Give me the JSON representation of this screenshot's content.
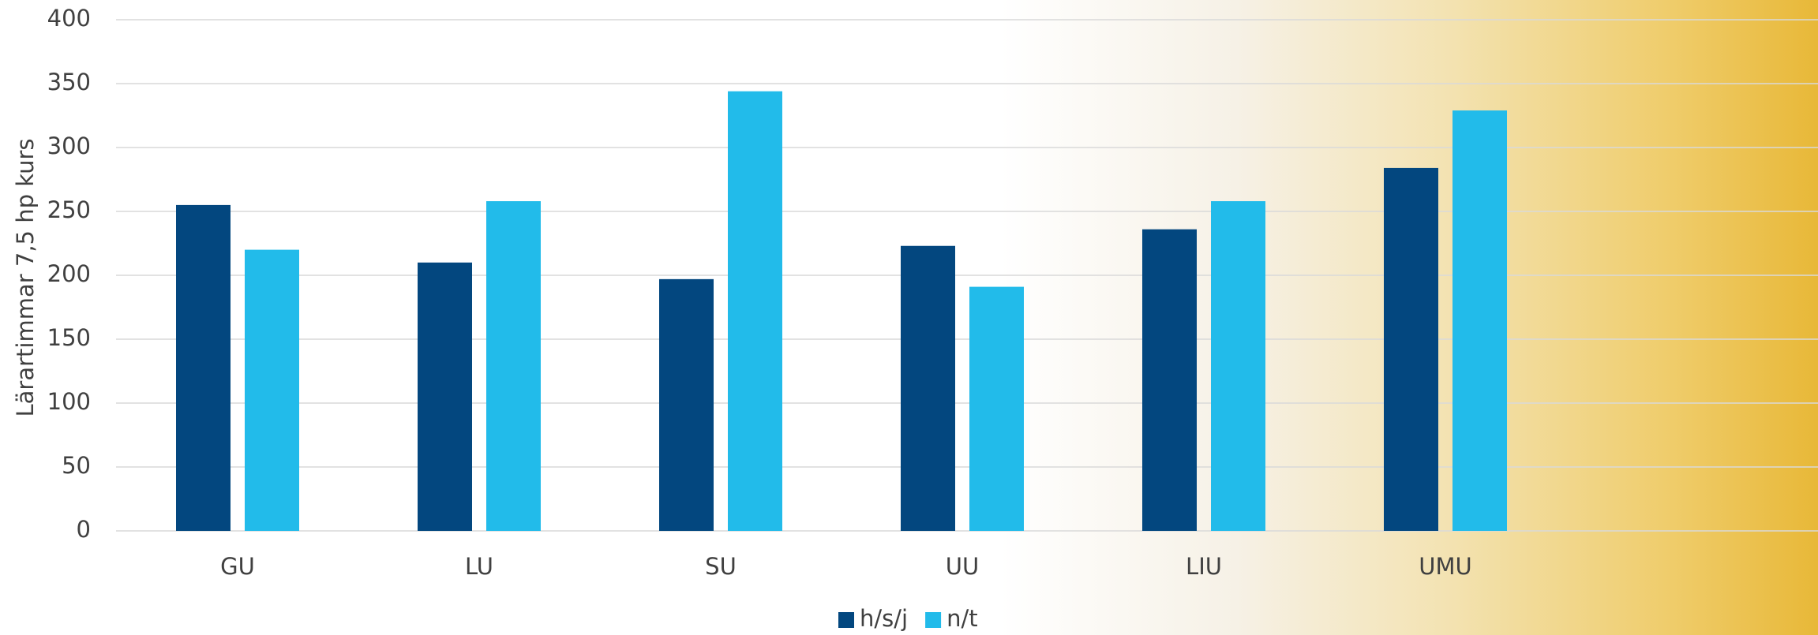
{
  "chart_data": {
    "type": "bar",
    "y_label": "Lärartimmar 7,5 hp kurs",
    "categories": [
      "GU",
      "LU",
      "SU",
      "UU",
      "LIU",
      "UMU"
    ],
    "series": [
      {
        "name": "h/s/j",
        "color": "#03477f",
        "values": [
          255,
          210,
          197,
          223,
          236,
          284
        ]
      },
      {
        "name": "n/t",
        "color": "#22bbea",
        "values": [
          220,
          258,
          344,
          191,
          258,
          329
        ]
      }
    ],
    "ylim": [
      0,
      400
    ],
    "yticks": [
      0,
      50,
      100,
      150,
      200,
      250,
      300,
      350,
      400
    ],
    "grid": true,
    "legend": "bottom"
  }
}
